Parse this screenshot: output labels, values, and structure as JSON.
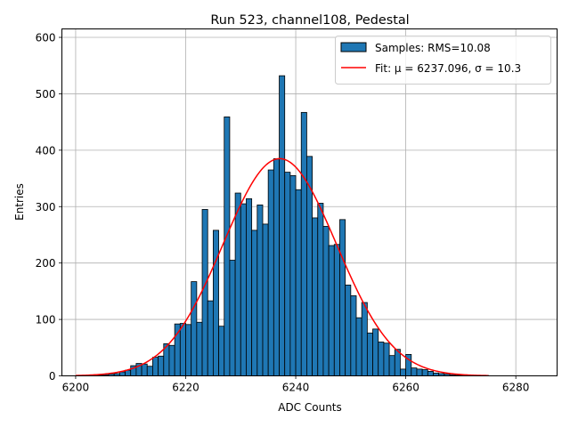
{
  "chart_data": {
    "type": "bar",
    "title": "Run 523, channel108, Pedestal",
    "xlabel": "ADC Counts",
    "ylabel": "Entries",
    "xlim": [
      6197.5,
      6287.5
    ],
    "ylim": [
      0,
      615
    ],
    "xticks": [
      6200,
      6220,
      6240,
      6260,
      6280
    ],
    "yticks": [
      0,
      100,
      200,
      300,
      400,
      500,
      600
    ],
    "grid": true,
    "legend_position": "top-right",
    "bin_width": 1,
    "histogram": {
      "name": "Samples: RMS=10.08",
      "color": "#1f77b4",
      "edgecolor": "#000000",
      "bins": [
        [
          6204,
          1
        ],
        [
          6205,
          2
        ],
        [
          6206,
          3
        ],
        [
          6207,
          4
        ],
        [
          6208,
          7
        ],
        [
          6209,
          10
        ],
        [
          6210,
          18
        ],
        [
          6211,
          22
        ],
        [
          6212,
          21
        ],
        [
          6213,
          17
        ],
        [
          6214,
          33
        ],
        [
          6215,
          35
        ],
        [
          6216,
          57
        ],
        [
          6217,
          54
        ],
        [
          6218,
          92
        ],
        [
          6219,
          93
        ],
        [
          6220,
          91
        ],
        [
          6221,
          167
        ],
        [
          6222,
          95
        ],
        [
          6223,
          295
        ],
        [
          6224,
          133
        ],
        [
          6225,
          258
        ],
        [
          6226,
          88
        ],
        [
          6227,
          459
        ],
        [
          6228,
          205
        ],
        [
          6229,
          324
        ],
        [
          6230,
          305
        ],
        [
          6231,
          314
        ],
        [
          6232,
          258
        ],
        [
          6233,
          303
        ],
        [
          6234,
          269
        ],
        [
          6235,
          365
        ],
        [
          6236,
          385
        ],
        [
          6237,
          532
        ],
        [
          6238,
          361
        ],
        [
          6239,
          355
        ],
        [
          6240,
          330
        ],
        [
          6241,
          467
        ],
        [
          6242,
          389
        ],
        [
          6243,
          280
        ],
        [
          6244,
          306
        ],
        [
          6245,
          265
        ],
        [
          6246,
          231
        ],
        [
          6247,
          233
        ],
        [
          6248,
          277
        ],
        [
          6249,
          161
        ],
        [
          6250,
          142
        ],
        [
          6251,
          103
        ],
        [
          6252,
          130
        ],
        [
          6253,
          76
        ],
        [
          6254,
          83
        ],
        [
          6255,
          60
        ],
        [
          6256,
          58
        ],
        [
          6257,
          36
        ],
        [
          6258,
          47
        ],
        [
          6259,
          12
        ],
        [
          6260,
          38
        ],
        [
          6261,
          14
        ],
        [
          6262,
          12
        ],
        [
          6263,
          11
        ],
        [
          6264,
          8
        ],
        [
          6265,
          5
        ],
        [
          6266,
          4
        ],
        [
          6267,
          3
        ],
        [
          6268,
          2
        ],
        [
          6269,
          1
        ],
        [
          6270,
          1
        ],
        [
          6271,
          1
        ],
        [
          6272,
          1
        ],
        [
          6273,
          1
        ],
        [
          6274,
          1
        ]
      ]
    },
    "fit": {
      "name": "Fit: μ = 6237.096, σ = 10.3",
      "color": "#ff0000",
      "mu": 6237.096,
      "sigma": 10.3,
      "amplitude": 385,
      "x_range": [
        6200,
        6275
      ]
    }
  }
}
